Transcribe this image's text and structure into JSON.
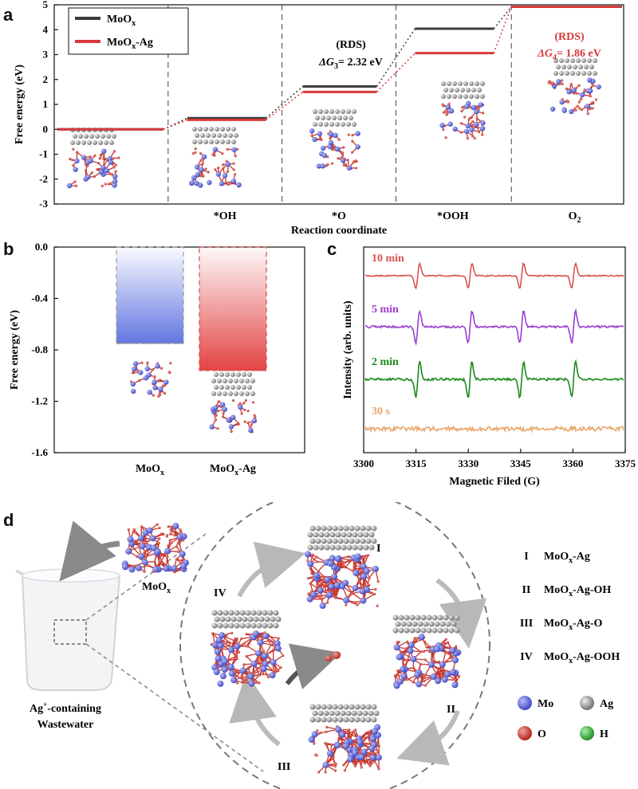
{
  "panel_labels": {
    "a": "a",
    "b": "b",
    "c": "c",
    "d": "d"
  },
  "colors": {
    "moox": "#3c3c3c",
    "mooxag": "#d83a3a",
    "mo": "#5a63d8",
    "ag": "#8a8a8a",
    "o": "#d33a30",
    "h": "#2eaa3a",
    "epr_10": "#d9534f",
    "epr_5": "#9b3fd0",
    "epr_2": "#1b8a1b",
    "epr_30": "#e8a56a"
  },
  "chart_data": [
    {
      "type": "line",
      "panel": "a",
      "ylabel": "Free energy (eV)",
      "xlabel": "Reaction coordinate",
      "ylim": [
        -3,
        5
      ],
      "yticks": [
        "-3",
        "-2",
        "-1",
        "0",
        "1",
        "2",
        "3",
        "4",
        "5"
      ],
      "categories": [
        "",
        "*OH",
        "*O",
        "*OOH",
        "O2"
      ],
      "series": [
        {
          "name": "MoOx",
          "legend_main": "MoO",
          "legend_sub": "x",
          "values": [
            0,
            0.45,
            1.72,
            4.04,
            4.92
          ]
        },
        {
          "name": "MoOx-Ag",
          "legend_main": "MoO",
          "legend_sub": "x",
          "legend_suffix": "-Ag",
          "values": [
            0,
            0.38,
            1.5,
            3.06,
            4.92
          ]
        }
      ],
      "annotations": [
        {
          "title": "(RDS)",
          "delta_prefix": "ΔG",
          "delta_sub": "3",
          "delta_value": "= 2.32 eV"
        },
        {
          "title": "(RDS)",
          "delta_prefix": "ΔG",
          "delta_sub": "4",
          "delta_value": "= 1.86 eV"
        }
      ]
    },
    {
      "type": "bar",
      "panel": "b",
      "ylabel": "Free energy (eV)",
      "ylim": [
        -1.6,
        0.0
      ],
      "yticks": [
        "0.0",
        "-0.4",
        "-0.8",
        "-1.2",
        "-1.6"
      ],
      "categories": [
        {
          "main": "MoO",
          "sub": "x",
          "suffix": ""
        },
        {
          "main": "MoO",
          "sub": "x",
          "suffix": "-Ag"
        }
      ],
      "values": [
        -0.75,
        -0.96
      ]
    },
    {
      "type": "line",
      "panel": "c",
      "ylabel": "Intensity (arb. units)",
      "xlabel": "Magnetic Filed (G)",
      "xlim": [
        3300,
        3375
      ],
      "xticks": [
        "3300",
        "3315",
        "3330",
        "3345",
        "3360",
        "3375"
      ],
      "series": [
        {
          "name": "10 min",
          "peaks": [
            3315.5,
            3330.5,
            3345.3,
            3360.2
          ],
          "amplitude": 1.0,
          "noise": 0.12
        },
        {
          "name": "5 min",
          "peaks": [
            3315.5,
            3330.5,
            3345.3,
            3360.2
          ],
          "amplitude": 1.3,
          "noise": 0.22
        },
        {
          "name": "2 min",
          "peaks": [
            3315.5,
            3330.5,
            3345.3,
            3360.2
          ],
          "amplitude": 1.4,
          "noise": 0.25
        },
        {
          "name": "30 s",
          "peaks": [],
          "amplitude": 0.0,
          "noise": 0.45
        }
      ]
    }
  ],
  "panel_d": {
    "cluster_label_main": "MoO",
    "cluster_label_sub": "x",
    "beaker_label_line1_pre": "Ag",
    "beaker_label_line1_sup": "+",
    "beaker_label_line1_post": "-containing",
    "beaker_label_line2": "Wastewater",
    "cycle_labels": [
      "I",
      "II",
      "III",
      "IV"
    ],
    "states": [
      {
        "num": "I",
        "main": "MoO",
        "sub": "x",
        "suffix": "-Ag"
      },
      {
        "num": "II",
        "main": "MoO",
        "sub": "x",
        "suffix": "-Ag-OH"
      },
      {
        "num": "III",
        "main": "MoO",
        "sub": "x",
        "suffix": "-Ag-O"
      },
      {
        "num": "IV",
        "main": "MoO",
        "sub": "x",
        "suffix": "-Ag-OOH"
      }
    ],
    "legend": [
      {
        "label": "Mo",
        "color": "#5a63d8"
      },
      {
        "label": "Ag",
        "color": "#8a8a8a"
      },
      {
        "label": "O",
        "color": "#d33a30"
      },
      {
        "label": "H",
        "color": "#2eaa3a"
      }
    ]
  }
}
